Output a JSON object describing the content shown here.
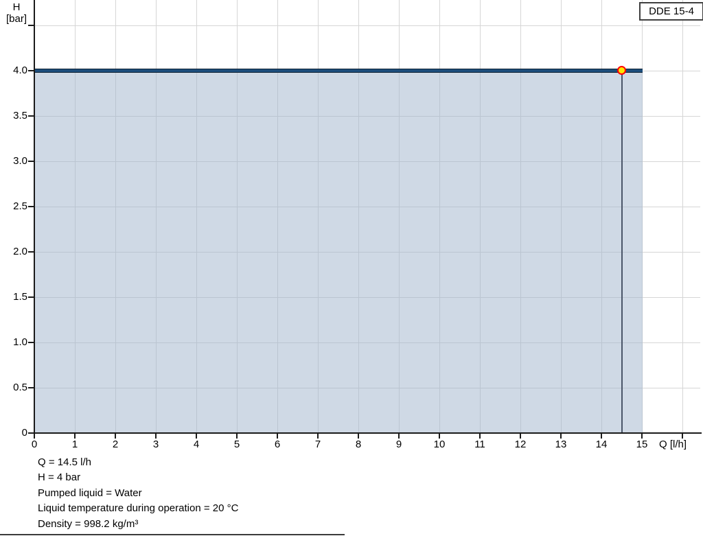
{
  "chart_data": {
    "type": "line",
    "title": "",
    "product_label": "DDE 15-4",
    "xlabel": "Q [l/h]",
    "ylabel_line1": "H",
    "ylabel_line2": "[bar]",
    "xlim": [
      0,
      16.4
    ],
    "ylim": [
      0,
      4.78
    ],
    "grid": true,
    "x_ticks": [
      0,
      1,
      2,
      3,
      4,
      5,
      6,
      7,
      8,
      9,
      10,
      11,
      12,
      13,
      14,
      15,
      16
    ],
    "x_tick_labels": [
      "0",
      "1",
      "2",
      "3",
      "4",
      "5",
      "6",
      "7",
      "8",
      "9",
      "10",
      "11",
      "12",
      "13",
      "14",
      "15"
    ],
    "y_ticks": [
      0,
      0.5,
      1.0,
      1.5,
      2.0,
      2.5,
      3.0,
      3.5,
      4.0,
      4.5
    ],
    "y_tick_labels": [
      "0",
      "0.5",
      "1.0",
      "1.5",
      "2.0",
      "2.5",
      "3.0",
      "3.5",
      "4.0"
    ],
    "series": [
      {
        "name": "DDE 15-4 pump curve",
        "x": [
          0,
          15
        ],
        "y": [
          4,
          4
        ],
        "color": "#1d4e7c"
      }
    ],
    "shaded_region": {
      "x_min": 0,
      "x_max": 15,
      "y_min": 0,
      "y_max": 4,
      "fill": "#cfd9e5"
    },
    "operating_point": {
      "Q": 14.5,
      "H": 4,
      "marker_fill": "#ffe600",
      "marker_ring": "#ff0000",
      "drop_line_color": "#4a5568"
    },
    "annotations": [
      "Q = 14.5 l/h",
      "H = 4 bar",
      "Pumped liquid = Water",
      "Liquid temperature during operation = 20 °C",
      "Density = 998.2 kg/m³"
    ],
    "colors": {
      "gridline": "#d6d6d6",
      "axis": "#1a1a1a",
      "curve": "#1d4e7c",
      "area": "#cfd9e5"
    }
  }
}
